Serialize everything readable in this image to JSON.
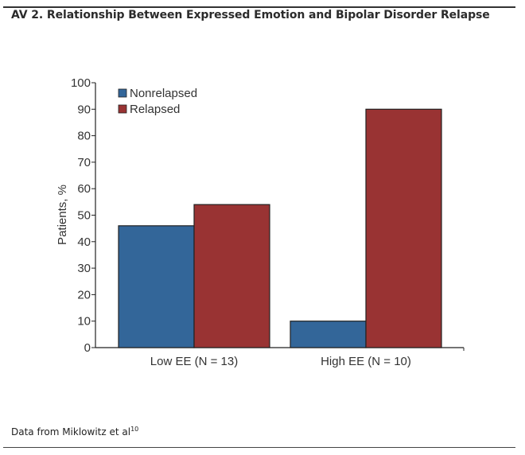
{
  "figure": {
    "title": "AV 2. Relationship Between Expressed Emotion and Bipolar Disorder Relapse",
    "footnote_text": "Data from Miklowitz et al",
    "footnote_ref": "10"
  },
  "chart_data": {
    "type": "bar",
    "title": "AV 2. Relationship Between Expressed Emotion and Bipolar Disorder Relapse",
    "categories": [
      "Low EE (N = 13)",
      "High EE (N = 10)"
    ],
    "series": [
      {
        "name": "Nonrelapsed",
        "color": "#336699",
        "values": [
          46,
          10
        ]
      },
      {
        "name": "Relapsed",
        "color": "#993333",
        "values": [
          54,
          90
        ]
      }
    ],
    "xlabel": "",
    "ylabel": "Patients, %",
    "ylim": [
      0,
      100
    ],
    "yticks": [
      0,
      10,
      20,
      30,
      40,
      50,
      60,
      70,
      80,
      90,
      100
    ],
    "grid": false,
    "legend_position": "top-left",
    "bar_outline_color": "#222222"
  }
}
